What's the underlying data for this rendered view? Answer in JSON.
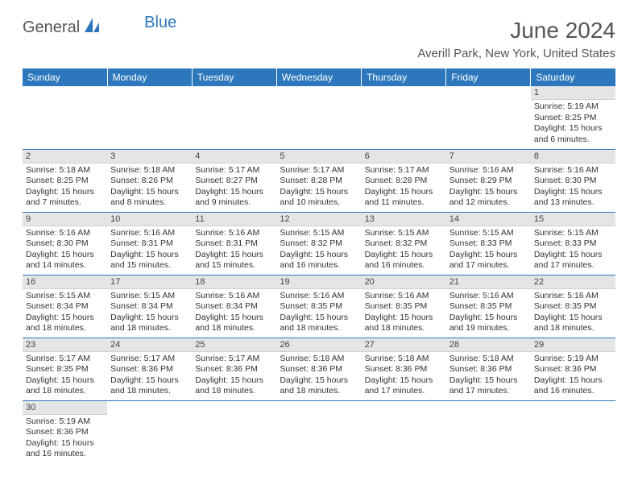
{
  "logo": {
    "part1": "General",
    "part2": "Blue"
  },
  "title": "June 2024",
  "location": "Averill Park, New York, United States",
  "colors": {
    "header_bg": "#2d78bd",
    "header_text": "#ffffff",
    "daynum_bg": "#e5e5e5",
    "row_divider": "#2d78bd",
    "body_text": "#333333",
    "title_text": "#555555"
  },
  "day_headers": [
    "Sunday",
    "Monday",
    "Tuesday",
    "Wednesday",
    "Thursday",
    "Friday",
    "Saturday"
  ],
  "weeks": [
    [
      null,
      null,
      null,
      null,
      null,
      null,
      {
        "n": "1",
        "sunrise": "5:19 AM",
        "sunset": "8:25 PM",
        "daylight": "15 hours and 6 minutes."
      }
    ],
    [
      {
        "n": "2",
        "sunrise": "5:18 AM",
        "sunset": "8:25 PM",
        "daylight": "15 hours and 7 minutes."
      },
      {
        "n": "3",
        "sunrise": "5:18 AM",
        "sunset": "8:26 PM",
        "daylight": "15 hours and 8 minutes."
      },
      {
        "n": "4",
        "sunrise": "5:17 AM",
        "sunset": "8:27 PM",
        "daylight": "15 hours and 9 minutes."
      },
      {
        "n": "5",
        "sunrise": "5:17 AM",
        "sunset": "8:28 PM",
        "daylight": "15 hours and 10 minutes."
      },
      {
        "n": "6",
        "sunrise": "5:17 AM",
        "sunset": "8:28 PM",
        "daylight": "15 hours and 11 minutes."
      },
      {
        "n": "7",
        "sunrise": "5:16 AM",
        "sunset": "8:29 PM",
        "daylight": "15 hours and 12 minutes."
      },
      {
        "n": "8",
        "sunrise": "5:16 AM",
        "sunset": "8:30 PM",
        "daylight": "15 hours and 13 minutes."
      }
    ],
    [
      {
        "n": "9",
        "sunrise": "5:16 AM",
        "sunset": "8:30 PM",
        "daylight": "15 hours and 14 minutes."
      },
      {
        "n": "10",
        "sunrise": "5:16 AM",
        "sunset": "8:31 PM",
        "daylight": "15 hours and 15 minutes."
      },
      {
        "n": "11",
        "sunrise": "5:16 AM",
        "sunset": "8:31 PM",
        "daylight": "15 hours and 15 minutes."
      },
      {
        "n": "12",
        "sunrise": "5:15 AM",
        "sunset": "8:32 PM",
        "daylight": "15 hours and 16 minutes."
      },
      {
        "n": "13",
        "sunrise": "5:15 AM",
        "sunset": "8:32 PM",
        "daylight": "15 hours and 16 minutes."
      },
      {
        "n": "14",
        "sunrise": "5:15 AM",
        "sunset": "8:33 PM",
        "daylight": "15 hours and 17 minutes."
      },
      {
        "n": "15",
        "sunrise": "5:15 AM",
        "sunset": "8:33 PM",
        "daylight": "15 hours and 17 minutes."
      }
    ],
    [
      {
        "n": "16",
        "sunrise": "5:15 AM",
        "sunset": "8:34 PM",
        "daylight": "15 hours and 18 minutes."
      },
      {
        "n": "17",
        "sunrise": "5:15 AM",
        "sunset": "8:34 PM",
        "daylight": "15 hours and 18 minutes."
      },
      {
        "n": "18",
        "sunrise": "5:16 AM",
        "sunset": "8:34 PM",
        "daylight": "15 hours and 18 minutes."
      },
      {
        "n": "19",
        "sunrise": "5:16 AM",
        "sunset": "8:35 PM",
        "daylight": "15 hours and 18 minutes."
      },
      {
        "n": "20",
        "sunrise": "5:16 AM",
        "sunset": "8:35 PM",
        "daylight": "15 hours and 18 minutes."
      },
      {
        "n": "21",
        "sunrise": "5:16 AM",
        "sunset": "8:35 PM",
        "daylight": "15 hours and 19 minutes."
      },
      {
        "n": "22",
        "sunrise": "5:16 AM",
        "sunset": "8:35 PM",
        "daylight": "15 hours and 18 minutes."
      }
    ],
    [
      {
        "n": "23",
        "sunrise": "5:17 AM",
        "sunset": "8:35 PM",
        "daylight": "15 hours and 18 minutes."
      },
      {
        "n": "24",
        "sunrise": "5:17 AM",
        "sunset": "8:36 PM",
        "daylight": "15 hours and 18 minutes."
      },
      {
        "n": "25",
        "sunrise": "5:17 AM",
        "sunset": "8:36 PM",
        "daylight": "15 hours and 18 minutes."
      },
      {
        "n": "26",
        "sunrise": "5:18 AM",
        "sunset": "8:36 PM",
        "daylight": "15 hours and 18 minutes."
      },
      {
        "n": "27",
        "sunrise": "5:18 AM",
        "sunset": "8:36 PM",
        "daylight": "15 hours and 17 minutes."
      },
      {
        "n": "28",
        "sunrise": "5:18 AM",
        "sunset": "8:36 PM",
        "daylight": "15 hours and 17 minutes."
      },
      {
        "n": "29",
        "sunrise": "5:19 AM",
        "sunset": "8:36 PM",
        "daylight": "15 hours and 16 minutes."
      }
    ],
    [
      {
        "n": "30",
        "sunrise": "5:19 AM",
        "sunset": "8:36 PM",
        "daylight": "15 hours and 16 minutes."
      },
      null,
      null,
      null,
      null,
      null,
      null
    ]
  ],
  "labels": {
    "sunrise": "Sunrise: ",
    "sunset": "Sunset: ",
    "daylight": "Daylight: "
  }
}
